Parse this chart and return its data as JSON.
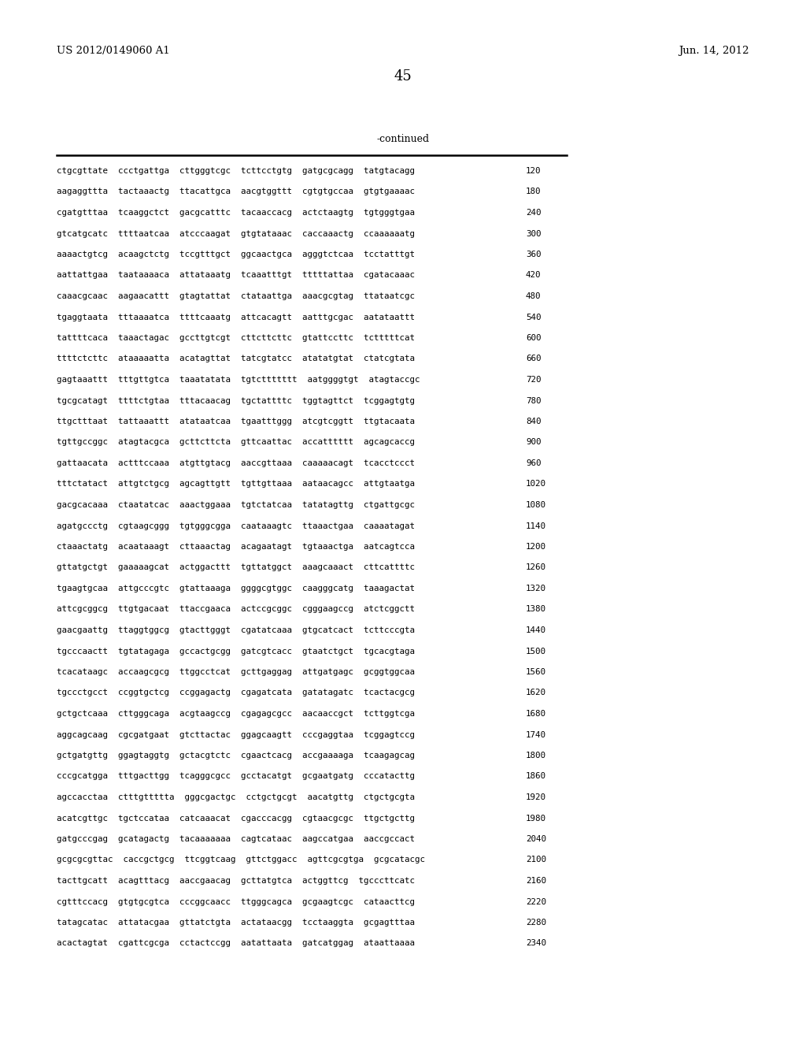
{
  "header_left": "US 2012/0149060 A1",
  "header_right": "Jun. 14, 2012",
  "page_number": "45",
  "continued_text": "-continued",
  "background_color": "#ffffff",
  "text_color": "#000000",
  "sequence_lines": [
    {
      "seq": "ctgcgttate  ccctgattga  cttgggtcgc  tcttcctgtg  gatgcgcagg  tatgtacagg",
      "num": "120"
    },
    {
      "seq": "aagaggttta  tactaaactg  ttacattgca  aacgtggttt  cgtgtgccaa  gtgtgaaaac",
      "num": "180"
    },
    {
      "seq": "cgatgtttaa  tcaaggctct  gacgcatttc  tacaaccacg  actctaagtg  tgtgggtgaa",
      "num": "240"
    },
    {
      "seq": "gtcatgcatc  ttttaatcaa  atcccaagat  gtgtataaac  caccaaactg  ccaaaaaatg",
      "num": "300"
    },
    {
      "seq": "aaaactgtcg  acaagctctg  tccgtttgct  ggcaactgca  agggtctcaa  tcctatttgt",
      "num": "360"
    },
    {
      "seq": "aattattgaa  taataaaaca  attataaatg  tcaaatttgt  tttttattaa  cgatacaaac",
      "num": "420"
    },
    {
      "seq": "caaacgcaac  aagaacattt  gtagtattat  ctataattga  aaacgcgtag  ttataatcgc",
      "num": "480"
    },
    {
      "seq": "tgaggtaata  tttaaaatca  ttttcaaatg  attcacagtt  aatttgcgac  aatataattt",
      "num": "540"
    },
    {
      "seq": "tattttcaca  taaactagac  gccttgtcgt  cttcttcttc  gtattccttc  tctttttcat",
      "num": "600"
    },
    {
      "seq": "ttttctcttc  ataaaaatta  acatagttat  tatcgtatcc  atatatgtat  ctatcgtata",
      "num": "660"
    },
    {
      "seq": "gagtaaattt  tttgttgtca  taaatatata  tgtcttttttt  aatggggtgt  atagtaccgc",
      "num": "720"
    },
    {
      "seq": "tgcgcatagt  ttttctgtaa  tttacaacag  tgctattttc  tggtagttct  tcggagtgtg",
      "num": "780"
    },
    {
      "seq": "ttgctttaat  tattaaattt  atataatcaa  tgaatttggg  atcgtcggtt  ttgtacaata",
      "num": "840"
    },
    {
      "seq": "tgttgccggc  atagtacgca  gcttcttcta  gttcaattac  accatttttt  agcagcaccg",
      "num": "900"
    },
    {
      "seq": "gattaacata  actttccaaa  atgttgtacg  aaccgttaaa  caaaaacagt  tcacctccct",
      "num": "960"
    },
    {
      "seq": "tttctatact  attgtctgcg  agcagttgtt  tgttgttaaa  aataacagcc  attgtaatga",
      "num": "1020"
    },
    {
      "seq": "gacgcacaaa  ctaatatcac  aaactggaaa  tgtctatcaa  tatatagttg  ctgattgcgc",
      "num": "1080"
    },
    {
      "seq": "agatgccctg  cgtaagcggg  tgtgggcgga  caataaagtc  ttaaactgaa  caaaatagat",
      "num": "1140"
    },
    {
      "seq": "ctaaactatg  acaataaagt  cttaaactag  acagaatagt  tgtaaactga  aatcagtcca",
      "num": "1200"
    },
    {
      "seq": "gttatgctgt  gaaaaagcat  actggacttt  tgttatggct  aaagcaaact  cttcattttc",
      "num": "1260"
    },
    {
      "seq": "tgaagtgcaa  attgcccgtc  gtattaaaga  ggggcgtggc  caagggcatg  taaagactat",
      "num": "1320"
    },
    {
      "seq": "attcgcggcg  ttgtgacaat  ttaccgaaca  actccgcggc  cgggaagccg  atctcggctt",
      "num": "1380"
    },
    {
      "seq": "gaacgaattg  ttaggtggcg  gtacttgggt  cgatatcaaa  gtgcatcact  tcttcccgta",
      "num": "1440"
    },
    {
      "seq": "tgcccaactt  tgtatagaga  gccactgcgg  gatcgtcacc  gtaatctgct  tgcacgtaga",
      "num": "1500"
    },
    {
      "seq": "tcacataagc  accaagcgcg  ttggcctcat  gcttgaggag  attgatgagc  gcggtggcaa",
      "num": "1560"
    },
    {
      "seq": "tgccctgcct  ccggtgctcg  ccggagactg  cgagatcata  gatatagatc  tcactacgcg",
      "num": "1620"
    },
    {
      "seq": "gctgctcaaa  cttgggcaga  acgtaagccg  cgagagcgcc  aacaaccgct  tcttggtcga",
      "num": "1680"
    },
    {
      "seq": "aggcagcaag  cgcgatgaat  gtcttactac  ggagcaagtt  cccgaggtaa  tcggagtccg",
      "num": "1740"
    },
    {
      "seq": "gctgatgttg  ggagtaggtg  gctacgtctc  cgaactcacg  accgaaaaga  tcaagagcag",
      "num": "1800"
    },
    {
      "seq": "cccgcatgga  tttgacttgg  tcagggcgcc  gcctacatgt  gcgaatgatg  cccatacttg",
      "num": "1860"
    },
    {
      "seq": "agccacctaa  ctttgttttta  gggcgactgc  cctgctgcgt  aacatgttg  ctgctgcgta",
      "num": "1920"
    },
    {
      "seq": "acatcgttgc  tgctccataa  catcaaacat  cgacccacgg  cgtaacgcgc  ttgctgcttg",
      "num": "1980"
    },
    {
      "seq": "gatgcccgag  gcatagactg  tacaaaaaaa  cagtcataac  aagccatgaa  aaccgccact",
      "num": "2040"
    },
    {
      "seq": "gcgcgcgttac  caccgctgcg  ttcggtcaag  gttctggacc  agttcgcgtga  gcgcatacgc",
      "num": "2100"
    },
    {
      "seq": "tacttgcatt  acagtttacg  aaccgaacag  gcttatgtca  actggttcg  tgcccttcatc",
      "num": "2160"
    },
    {
      "seq": "cgtttccacg  gtgtgcgtca  cccggcaacc  ttgggcagca  gcgaagtcgc  cataacttcg",
      "num": "2220"
    },
    {
      "seq": "tatagcatac  attatacgaa  gttatctgta  actataacgg  tcctaaggta  gcgagtttaa",
      "num": "2280"
    },
    {
      "seq": "acactagtat  cgattcgcga  cctactccgg  aatattaata  gatcatggag  ataattaaaa",
      "num": "2340"
    }
  ]
}
